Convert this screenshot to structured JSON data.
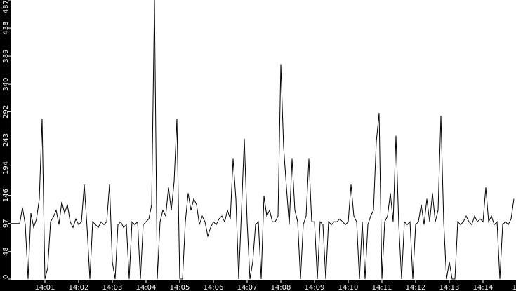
{
  "chart_data": {
    "type": "line",
    "title": "",
    "xlabel": "",
    "ylabel": "",
    "ylim": [
      0,
      487
    ],
    "xlim": [
      "14:00:00",
      "14:15:00"
    ],
    "y_ticks": [
      "0",
      "48",
      "97",
      "146",
      "194",
      "243",
      "292",
      "340",
      "389",
      "438",
      "487"
    ],
    "x_ticks": [
      "14:01",
      "14:02",
      "14:03",
      "14:04",
      "14:05",
      "14:06",
      "14:07",
      "14:08",
      "14:09",
      "14:10",
      "14:11",
      "14:12",
      "14:13",
      "14:14",
      "14"
    ],
    "grid": false,
    "colors": {
      "line": "#000000",
      "axis_bg": "#000000",
      "axis_text": "#ffffff",
      "plot_bg": "#ffffff"
    },
    "x": [
      "14:00:00",
      "14:00:05",
      "14:00:10",
      "14:00:15",
      "14:00:20",
      "14:00:25",
      "14:00:30",
      "14:00:35",
      "14:00:40",
      "14:00:45",
      "14:00:50",
      "14:00:55",
      "14:01:00",
      "14:01:05",
      "14:01:10",
      "14:01:15",
      "14:01:20",
      "14:01:25",
      "14:01:30",
      "14:01:35",
      "14:01:40",
      "14:01:45",
      "14:01:50",
      "14:01:55",
      "14:02:00",
      "14:02:05",
      "14:02:10",
      "14:02:15",
      "14:02:20",
      "14:02:25",
      "14:02:30",
      "14:02:35",
      "14:02:40",
      "14:02:45",
      "14:02:50",
      "14:02:55",
      "14:03:00",
      "14:03:05",
      "14:03:10",
      "14:03:15",
      "14:03:20",
      "14:03:25",
      "14:03:30",
      "14:03:35",
      "14:03:40",
      "14:03:45",
      "14:03:50",
      "14:03:55",
      "14:04:00",
      "14:04:05",
      "14:04:10",
      "14:04:15",
      "14:04:20",
      "14:04:25",
      "14:04:30",
      "14:04:35",
      "14:04:40",
      "14:04:45",
      "14:04:50",
      "14:04:55",
      "14:05:00",
      "14:05:05",
      "14:05:10",
      "14:05:15",
      "14:05:20",
      "14:05:25",
      "14:05:30",
      "14:05:35",
      "14:05:40",
      "14:05:45",
      "14:05:50",
      "14:05:55",
      "14:06:00",
      "14:06:05",
      "14:06:10",
      "14:06:15",
      "14:06:20",
      "14:06:25",
      "14:06:30",
      "14:06:35",
      "14:06:40",
      "14:06:45",
      "14:06:50",
      "14:06:55",
      "14:07:00",
      "14:07:05",
      "14:07:10",
      "14:07:15",
      "14:07:20",
      "14:07:25",
      "14:07:30",
      "14:07:35",
      "14:07:40",
      "14:07:45",
      "14:07:50",
      "14:07:55",
      "14:08:00",
      "14:08:05",
      "14:08:10",
      "14:08:15",
      "14:08:20",
      "14:08:25",
      "14:08:30",
      "14:08:35",
      "14:08:40",
      "14:08:45",
      "14:08:50",
      "14:08:55",
      "14:09:00",
      "14:09:05",
      "14:09:10",
      "14:09:15",
      "14:09:20",
      "14:09:25",
      "14:09:30",
      "14:09:35",
      "14:09:40",
      "14:09:45",
      "14:09:50",
      "14:09:55",
      "14:10:00",
      "14:10:05",
      "14:10:10",
      "14:10:15",
      "14:10:20",
      "14:10:25",
      "14:10:30",
      "14:10:35",
      "14:10:40",
      "14:10:45",
      "14:10:50",
      "14:10:55",
      "14:11:00",
      "14:11:05",
      "14:11:10",
      "14:11:15",
      "14:11:20",
      "14:11:25",
      "14:11:30",
      "14:11:35",
      "14:11:40",
      "14:11:45",
      "14:11:50",
      "14:11:55",
      "14:12:00",
      "14:12:05",
      "14:12:10",
      "14:12:15",
      "14:12:20",
      "14:12:25",
      "14:12:30",
      "14:12:35",
      "14:12:40",
      "14:12:45",
      "14:12:50",
      "14:12:55",
      "14:13:00",
      "14:13:05",
      "14:13:10",
      "14:13:15",
      "14:13:20",
      "14:13:25",
      "14:13:30",
      "14:13:35",
      "14:13:40",
      "14:13:45",
      "14:13:50",
      "14:13:55",
      "14:14:00",
      "14:14:05",
      "14:14:10",
      "14:14:15",
      "14:14:20",
      "14:14:25",
      "14:14:30",
      "14:14:35",
      "14:14:40",
      "14:14:45",
      "14:14:50",
      "14:14:55"
    ],
    "values": [
      97,
      97,
      97,
      97,
      125,
      95,
      0,
      115,
      90,
      105,
      140,
      280,
      0,
      20,
      100,
      108,
      120,
      95,
      135,
      115,
      130,
      100,
      90,
      105,
      95,
      100,
      165,
      90,
      0,
      100,
      95,
      90,
      100,
      95,
      100,
      165,
      30,
      0,
      95,
      100,
      90,
      95,
      0,
      100,
      95,
      100,
      0,
      95,
      100,
      105,
      130,
      487,
      0,
      100,
      120,
      110,
      160,
      120,
      170,
      280,
      0,
      0,
      100,
      150,
      120,
      140,
      130,
      95,
      110,
      100,
      75,
      90,
      100,
      95,
      105,
      110,
      100,
      120,
      105,
      210,
      140,
      0,
      120,
      245,
      100,
      0,
      30,
      95,
      100,
      0,
      145,
      110,
      120,
      100,
      100,
      110,
      375,
      230,
      160,
      95,
      210,
      120,
      100,
      0,
      95,
      110,
      210,
      100,
      100,
      0,
      100,
      95,
      0,
      100,
      95,
      100,
      100,
      105,
      100,
      95,
      100,
      165,
      110,
      100,
      0,
      100,
      0,
      95,
      110,
      120,
      240,
      290,
      0,
      100,
      110,
      150,
      100,
      250,
      95,
      0,
      100,
      95,
      100,
      0,
      95,
      100,
      130,
      95,
      140,
      100,
      150,
      100,
      120,
      285,
      100,
      0,
      30,
      0,
      0,
      100,
      95,
      100,
      110,
      100,
      95,
      110,
      100,
      105,
      100,
      160,
      100,
      110,
      95,
      100,
      0,
      95,
      100,
      95,
      105,
      140
    ]
  }
}
